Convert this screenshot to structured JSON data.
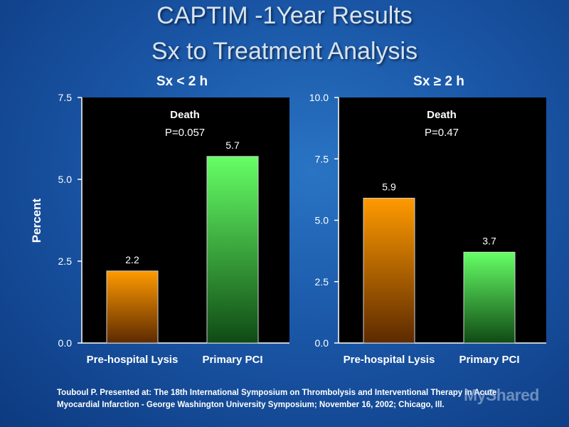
{
  "slide": {
    "title_line1": "CAPTIM -1Year Results",
    "title_line2": "Sx to Treatment Analysis",
    "ylabel": "Percent",
    "footnote_line1": "Touboul P. Presented at: The 18th International Symposium on Thrombolysis and Interventional Therapy in Acute",
    "footnote_line2": "Myocardial Infarction - George Washington University Symposium; November 16, 2002; Chicago, Ill.",
    "watermark": "MyShared"
  },
  "colors": {
    "background": "#1a56a6",
    "plot_background": "#000000",
    "lysis_top": "#ff9a00",
    "lysis_bottom": "#5c2a00",
    "pci_top": "#66ff66",
    "pci_bottom": "#0f4a14"
  },
  "chart_data": [
    {
      "type": "bar",
      "title": "Sx < 2 h",
      "subtitle": "Death",
      "annotation": "P=0.057",
      "ylabel": "Percent",
      "categories": [
        "Pre-hospital Lysis",
        "Primary PCI"
      ],
      "values": [
        2.2,
        5.7
      ],
      "value_labels": [
        "2.2",
        "5.7"
      ],
      "ylim": [
        0,
        7.5
      ],
      "yticks": [
        "0.0",
        "2.5",
        "5.0",
        "7.5"
      ],
      "grid": false
    },
    {
      "type": "bar",
      "title": "Sx ≥ 2 h",
      "subtitle": "Death",
      "annotation": "P=0.47",
      "ylabel": "",
      "categories": [
        "Pre-hospital Lysis",
        "Primary PCI"
      ],
      "values": [
        5.9,
        3.7
      ],
      "value_labels": [
        "5.9",
        "3.7"
      ],
      "ylim": [
        0,
        10
      ],
      "yticks": [
        "0.0",
        "2.5",
        "5.0",
        "7.5",
        "10.0"
      ],
      "grid": false
    }
  ]
}
